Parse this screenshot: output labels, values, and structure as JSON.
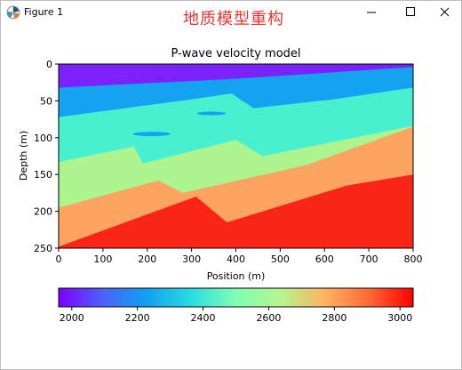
{
  "window": {
    "title": "Figure 1",
    "overlay_title": "地质模型重构",
    "controls": {
      "minimize": "minimize",
      "maximize": "maximize",
      "close": "close"
    }
  },
  "chart_data": {
    "type": "heatmap",
    "title": "P-wave velocity model",
    "xlabel": "Position (m)",
    "ylabel": "Depth (m)",
    "xlim": [
      0,
      800
    ],
    "ylim": [
      250,
      0
    ],
    "xticks": [
      0,
      100,
      200,
      300,
      400,
      500,
      600,
      700,
      800
    ],
    "yticks": [
      0,
      50,
      100,
      150,
      200,
      250
    ],
    "colormap": "rainbow",
    "colorbar": {
      "orientation": "horizontal",
      "placement": "bottom",
      "range": [
        1960,
        3040
      ],
      "ticks": [
        2000,
        2200,
        2400,
        2600,
        2800,
        3000
      ]
    },
    "layers": [
      {
        "velocity": 2000,
        "color": "#7b22fa",
        "top": [
          [
            0,
            0
          ],
          [
            800,
            0
          ]
        ]
      },
      {
        "velocity": 2250,
        "color": "#15a2f0",
        "top": [
          [
            0,
            32
          ],
          [
            400,
            20
          ],
          [
            800,
            4
          ]
        ]
      },
      {
        "velocity": 2530,
        "color": "#48f0d0",
        "top": [
          [
            0,
            72
          ],
          [
            300,
            48
          ],
          [
            390,
            40
          ],
          [
            440,
            60
          ],
          [
            620,
            48
          ],
          [
            800,
            32
          ]
        ]
      },
      {
        "velocity": 2720,
        "color": "#acf58e",
        "top": [
          [
            0,
            133
          ],
          [
            170,
            112
          ],
          [
            190,
            135
          ],
          [
            400,
            103
          ],
          [
            460,
            125
          ],
          [
            800,
            84
          ]
        ]
      },
      {
        "velocity": 2860,
        "color": "#fda560",
        "top": [
          [
            0,
            195
          ],
          [
            225,
            158
          ],
          [
            280,
            175
          ],
          [
            560,
            137
          ],
          [
            800,
            85
          ]
        ]
      },
      {
        "velocity": 3020,
        "color": "#fb2418",
        "top": [
          [
            0,
            248
          ],
          [
            310,
            180
          ],
          [
            380,
            215
          ],
          [
            650,
            165
          ],
          [
            800,
            150
          ]
        ]
      }
    ],
    "lenses": [
      {
        "velocity": 2250,
        "color": "#15a2f0",
        "center": [
          210,
          95
        ],
        "width": 85,
        "height": 6
      },
      {
        "velocity": 2250,
        "color": "#15a2f0",
        "center": [
          345,
          67
        ],
        "width": 65,
        "height": 5
      }
    ]
  }
}
